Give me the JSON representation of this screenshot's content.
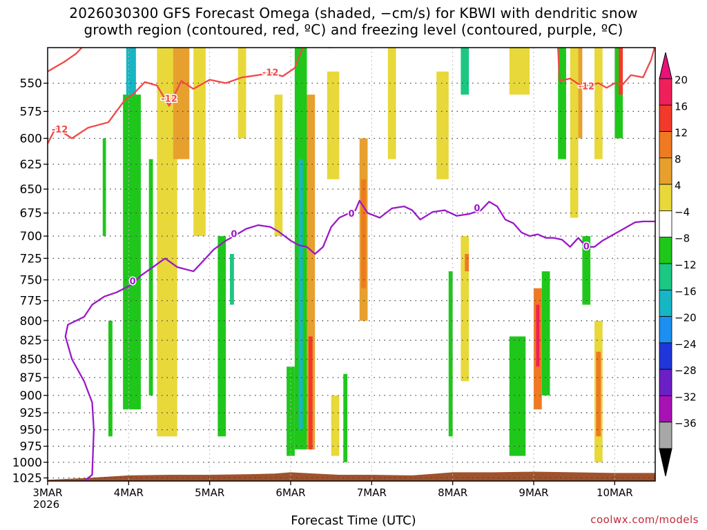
{
  "chart_data": {
    "type": "heatmap",
    "title_line1": "2026030300 GFS Forecast Omega (shaded, −cm/s) for KBWI with dendritic snow",
    "title_line2": "growth region (contoured, red, ºC) and freezing level (contoured, purple, ºC)",
    "xlabel": "Forecast Time (UTC)",
    "ylabel": "",
    "x_ticks": [
      "3MAR",
      "4MAR",
      "5MAR",
      "6MAR",
      "7MAR",
      "8MAR",
      "9MAR",
      "10MAR"
    ],
    "x_year": "2026",
    "x_range_days": [
      0,
      7.5
    ],
    "y_ticks": [
      550,
      575,
      600,
      625,
      650,
      675,
      700,
      725,
      750,
      775,
      800,
      825,
      850,
      875,
      900,
      925,
      950,
      975,
      1000,
      1025
    ],
    "y_range_hpa": [
      520,
      1030
    ],
    "y_scale": "log-pressure",
    "grid": true,
    "colorbar": {
      "labels": [
        "20",
        "16",
        "12",
        "8",
        "4",
        "−4",
        "−8",
        "−12",
        "−16",
        "−20",
        "−24",
        "−28",
        "−32",
        "−36"
      ],
      "colors": [
        "#ef1f5a",
        "#f23a2a",
        "#ef7a22",
        "#e7a02d",
        "#e8d83a",
        "#ffffff",
        "#1fc71b",
        "#1bc783",
        "#16b6c4",
        "#1c8ff0",
        "#2036d8",
        "#6b1fc4",
        "#a812b4",
        "#a7a7a7"
      ],
      "top_arrow_color": "#e8127a",
      "bottom_arrow_color": "#000000"
    },
    "contour_labels": {
      "snow_growth": "-12",
      "freezing": "0"
    },
    "snow_growth_level_-12C": [
      {
        "x": 0.0,
        "p": 605
      },
      {
        "x": 0.1,
        "p": 590
      },
      {
        "x": 0.3,
        "p": 600
      },
      {
        "x": 0.5,
        "p": 590
      },
      {
        "x": 0.75,
        "p": 585
      },
      {
        "x": 0.95,
        "p": 565
      },
      {
        "x": 1.05,
        "p": 560
      },
      {
        "x": 1.2,
        "p": 549
      },
      {
        "x": 1.35,
        "p": 552
      },
      {
        "x": 1.5,
        "p": 570
      },
      {
        "x": 1.65,
        "p": 548
      },
      {
        "x": 1.8,
        "p": 555
      },
      {
        "x": 2.0,
        "p": 547
      },
      {
        "x": 2.2,
        "p": 550
      },
      {
        "x": 2.4,
        "p": 545
      },
      {
        "x": 2.6,
        "p": 543
      },
      {
        "x": 2.75,
        "p": 541
      },
      {
        "x": 2.9,
        "p": 544
      },
      {
        "x": 3.05,
        "p": 537
      },
      {
        "x": 3.15,
        "p": 520
      },
      {
        "x": 3.3,
        "p": 518
      },
      {
        "x": 3.5,
        "p": 520
      }
    ],
    "snow_growth_level_-12C_b": [
      {
        "x": 0.0,
        "p": 540
      },
      {
        "x": 0.1,
        "p": 536
      },
      {
        "x": 0.2,
        "p": 532
      },
      {
        "x": 0.35,
        "p": 525
      },
      {
        "x": 0.45,
        "p": 518
      }
    ],
    "snow_growth_level_-12C_c": [
      {
        "x": 6.3,
        "p": 520
      },
      {
        "x": 6.32,
        "p": 548
      },
      {
        "x": 6.45,
        "p": 546
      },
      {
        "x": 6.6,
        "p": 553
      },
      {
        "x": 6.8,
        "p": 550
      },
      {
        "x": 6.9,
        "p": 554
      },
      {
        "x": 7.0,
        "p": 550
      },
      {
        "x": 7.1,
        "p": 551
      },
      {
        "x": 7.2,
        "p": 543
      },
      {
        "x": 7.35,
        "p": 545
      },
      {
        "x": 7.45,
        "p": 530
      },
      {
        "x": 7.5,
        "p": 518
      }
    ],
    "freezing_level_0C": [
      {
        "x": 0.45,
        "p": 1030
      },
      {
        "x": 0.5,
        "p": 1025
      },
      {
        "x": 0.55,
        "p": 1020
      },
      {
        "x": 0.57,
        "p": 950
      },
      {
        "x": 0.55,
        "p": 910
      },
      {
        "x": 0.45,
        "p": 880
      },
      {
        "x": 0.3,
        "p": 850
      },
      {
        "x": 0.22,
        "p": 820
      },
      {
        "x": 0.25,
        "p": 805
      },
      {
        "x": 0.35,
        "p": 800
      },
      {
        "x": 0.45,
        "p": 795
      },
      {
        "x": 0.55,
        "p": 780
      },
      {
        "x": 0.7,
        "p": 770
      },
      {
        "x": 0.85,
        "p": 765
      },
      {
        "x": 0.95,
        "p": 760
      },
      {
        "x": 1.05,
        "p": 755
      },
      {
        "x": 1.15,
        "p": 745
      },
      {
        "x": 1.3,
        "p": 735
      },
      {
        "x": 1.45,
        "p": 725
      },
      {
        "x": 1.6,
        "p": 735
      },
      {
        "x": 1.8,
        "p": 740
      },
      {
        "x": 1.95,
        "p": 725
      },
      {
        "x": 2.05,
        "p": 715
      },
      {
        "x": 2.2,
        "p": 705
      },
      {
        "x": 2.3,
        "p": 700
      },
      {
        "x": 2.45,
        "p": 692
      },
      {
        "x": 2.6,
        "p": 688
      },
      {
        "x": 2.75,
        "p": 690
      },
      {
        "x": 2.85,
        "p": 695
      },
      {
        "x": 3.0,
        "p": 705
      },
      {
        "x": 3.1,
        "p": 710
      },
      {
        "x": 3.2,
        "p": 712
      },
      {
        "x": 3.3,
        "p": 720
      },
      {
        "x": 3.4,
        "p": 712
      },
      {
        "x": 3.5,
        "p": 690
      },
      {
        "x": 3.6,
        "p": 680
      },
      {
        "x": 3.7,
        "p": 676
      },
      {
        "x": 3.8,
        "p": 672
      },
      {
        "x": 3.85,
        "p": 662
      },
      {
        "x": 3.95,
        "p": 675
      },
      {
        "x": 4.1,
        "p": 680
      },
      {
        "x": 4.25,
        "p": 670
      },
      {
        "x": 4.4,
        "p": 668
      },
      {
        "x": 4.5,
        "p": 672
      },
      {
        "x": 4.6,
        "p": 682
      },
      {
        "x": 4.75,
        "p": 674
      },
      {
        "x": 4.9,
        "p": 672
      },
      {
        "x": 5.05,
        "p": 678
      },
      {
        "x": 5.2,
        "p": 676
      },
      {
        "x": 5.35,
        "p": 672
      },
      {
        "x": 5.45,
        "p": 663
      },
      {
        "x": 5.55,
        "p": 668
      },
      {
        "x": 5.65,
        "p": 682
      },
      {
        "x": 5.75,
        "p": 686
      },
      {
        "x": 5.85,
        "p": 696
      },
      {
        "x": 5.95,
        "p": 700
      },
      {
        "x": 6.05,
        "p": 698
      },
      {
        "x": 6.15,
        "p": 702
      },
      {
        "x": 6.25,
        "p": 702
      },
      {
        "x": 6.35,
        "p": 704
      },
      {
        "x": 6.45,
        "p": 712
      },
      {
        "x": 6.55,
        "p": 702
      },
      {
        "x": 6.65,
        "p": 712
      },
      {
        "x": 6.75,
        "p": 712
      },
      {
        "x": 6.85,
        "p": 705
      },
      {
        "x": 6.95,
        "p": 700
      },
      {
        "x": 7.05,
        "p": 695
      },
      {
        "x": 7.15,
        "p": 690
      },
      {
        "x": 7.25,
        "p": 685
      },
      {
        "x": 7.35,
        "p": 684
      },
      {
        "x": 7.5,
        "p": 684
      }
    ],
    "surface_pressure": [
      {
        "x": 0.0,
        "p": 1028
      },
      {
        "x": 0.5,
        "p": 1025
      },
      {
        "x": 1.0,
        "p": 1021
      },
      {
        "x": 1.5,
        "p": 1020
      },
      {
        "x": 2.0,
        "p": 1020
      },
      {
        "x": 2.5,
        "p": 1019
      },
      {
        "x": 2.8,
        "p": 1018
      },
      {
        "x": 3.0,
        "p": 1016
      },
      {
        "x": 3.3,
        "p": 1018
      },
      {
        "x": 3.6,
        "p": 1020
      },
      {
        "x": 4.0,
        "p": 1020
      },
      {
        "x": 4.5,
        "p": 1021
      },
      {
        "x": 4.8,
        "p": 1018
      },
      {
        "x": 5.0,
        "p": 1016
      },
      {
        "x": 5.5,
        "p": 1016
      },
      {
        "x": 6.0,
        "p": 1015
      },
      {
        "x": 6.5,
        "p": 1016
      },
      {
        "x": 7.0,
        "p": 1017
      },
      {
        "x": 7.5,
        "p": 1017
      }
    ],
    "omega_cells": [
      {
        "x0": 1.0,
        "x1": 1.05,
        "p0": 520,
        "p1": 620,
        "v": -24
      },
      {
        "x0": 0.97,
        "x1": 1.09,
        "p0": 520,
        "p1": 760,
        "v": -16
      },
      {
        "x0": 0.93,
        "x1": 1.15,
        "p0": 560,
        "p1": 920,
        "v": -8
      },
      {
        "x0": 0.75,
        "x1": 0.8,
        "p0": 800,
        "p1": 960,
        "v": -8
      },
      {
        "x0": 0.68,
        "x1": 0.72,
        "p0": 600,
        "p1": 700,
        "v": -8
      },
      {
        "x0": 1.25,
        "x1": 1.3,
        "p0": 620,
        "p1": 900,
        "v": -8
      },
      {
        "x0": 1.4,
        "x1": 1.5,
        "p0": 520,
        "p1": 640,
        "v": 12
      },
      {
        "x0": 1.35,
        "x1": 1.6,
        "p0": 520,
        "p1": 960,
        "v": 4
      },
      {
        "x0": 1.55,
        "x1": 1.75,
        "p0": 520,
        "p1": 620,
        "v": 8
      },
      {
        "x0": 1.8,
        "x1": 1.95,
        "p0": 520,
        "p1": 700,
        "v": 4
      },
      {
        "x0": 2.1,
        "x1": 2.2,
        "p0": 700,
        "p1": 960,
        "v": -8
      },
      {
        "x0": 2.25,
        "x1": 2.3,
        "p0": 720,
        "p1": 780,
        "v": -12
      },
      {
        "x0": 2.35,
        "x1": 2.45,
        "p0": 520,
        "p1": 600,
        "v": 4
      },
      {
        "x0": 2.8,
        "x1": 2.9,
        "p0": 560,
        "p1": 700,
        "v": 4
      },
      {
        "x0": 3.05,
        "x1": 3.2,
        "p0": 520,
        "p1": 980,
        "v": -8
      },
      {
        "x0": 3.1,
        "x1": 3.15,
        "p0": 620,
        "p1": 950,
        "v": -16
      },
      {
        "x0": 3.2,
        "x1": 3.3,
        "p0": 560,
        "p1": 980,
        "v": 8
      },
      {
        "x0": 3.22,
        "x1": 3.27,
        "p0": 820,
        "p1": 980,
        "v": 16
      },
      {
        "x0": 2.95,
        "x1": 3.05,
        "p0": 860,
        "p1": 990,
        "v": -8
      },
      {
        "x0": 3.45,
        "x1": 3.6,
        "p0": 540,
        "p1": 640,
        "v": 4
      },
      {
        "x0": 3.65,
        "x1": 3.7,
        "p0": 870,
        "p1": 1000,
        "v": -8
      },
      {
        "x0": 3.5,
        "x1": 3.6,
        "p0": 900,
        "p1": 990,
        "v": 4
      },
      {
        "x0": 3.85,
        "x1": 3.95,
        "p0": 600,
        "p1": 800,
        "v": 8
      },
      {
        "x0": 3.87,
        "x1": 3.93,
        "p0": 640,
        "p1": 760,
        "v": 12
      },
      {
        "x0": 4.2,
        "x1": 4.3,
        "p0": 520,
        "p1": 620,
        "v": 4
      },
      {
        "x0": 4.8,
        "x1": 4.95,
        "p0": 540,
        "p1": 640,
        "v": 4
      },
      {
        "x0": 5.1,
        "x1": 5.2,
        "p0": 520,
        "p1": 560,
        "v": -12
      },
      {
        "x0": 5.1,
        "x1": 5.2,
        "p0": 700,
        "p1": 880,
        "v": 4
      },
      {
        "x0": 5.15,
        "x1": 5.2,
        "p0": 720,
        "p1": 740,
        "v": 12
      },
      {
        "x0": 4.95,
        "x1": 5.0,
        "p0": 740,
        "p1": 960,
        "v": -8
      },
      {
        "x0": 5.7,
        "x1": 5.95,
        "p0": 520,
        "p1": 560,
        "v": 4
      },
      {
        "x0": 5.75,
        "x1": 5.85,
        "p0": 840,
        "p1": 960,
        "v": -16
      },
      {
        "x0": 5.7,
        "x1": 5.9,
        "p0": 820,
        "p1": 990,
        "v": -8
      },
      {
        "x0": 6.0,
        "x1": 6.1,
        "p0": 760,
        "p1": 920,
        "v": 12
      },
      {
        "x0": 6.03,
        "x1": 6.07,
        "p0": 780,
        "p1": 860,
        "v": 20
      },
      {
        "x0": 6.1,
        "x1": 6.2,
        "p0": 740,
        "p1": 900,
        "v": -8
      },
      {
        "x0": 6.3,
        "x1": 6.4,
        "p0": 520,
        "p1": 620,
        "v": -8
      },
      {
        "x0": 6.45,
        "x1": 6.55,
        "p0": 520,
        "p1": 680,
        "v": 4
      },
      {
        "x0": 6.55,
        "x1": 6.6,
        "p0": 520,
        "p1": 600,
        "v": 8
      },
      {
        "x0": 6.6,
        "x1": 6.7,
        "p0": 700,
        "p1": 780,
        "v": -8
      },
      {
        "x0": 6.75,
        "x1": 6.85,
        "p0": 520,
        "p1": 620,
        "v": 4
      },
      {
        "x0": 6.75,
        "x1": 6.85,
        "p0": 800,
        "p1": 1000,
        "v": 4
      },
      {
        "x0": 6.77,
        "x1": 6.83,
        "p0": 840,
        "p1": 960,
        "v": 12
      },
      {
        "x0": 7.0,
        "x1": 7.1,
        "p0": 520,
        "p1": 600,
        "v": -8
      },
      {
        "x0": 7.05,
        "x1": 7.1,
        "p0": 520,
        "p1": 560,
        "v": 16
      }
    ]
  },
  "credit": "coolwx.com/models"
}
